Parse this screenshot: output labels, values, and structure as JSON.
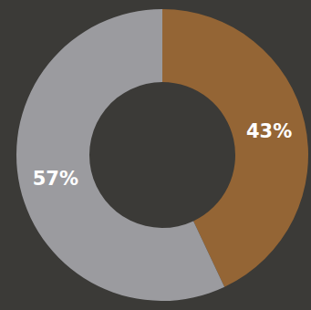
{
  "chart_data": {
    "type": "pie",
    "values": [
      43,
      57
    ],
    "value_labels": [
      "43%",
      "57%"
    ],
    "colors": [
      "#946535",
      "#9b9b9f"
    ],
    "data_labels": true
  }
}
